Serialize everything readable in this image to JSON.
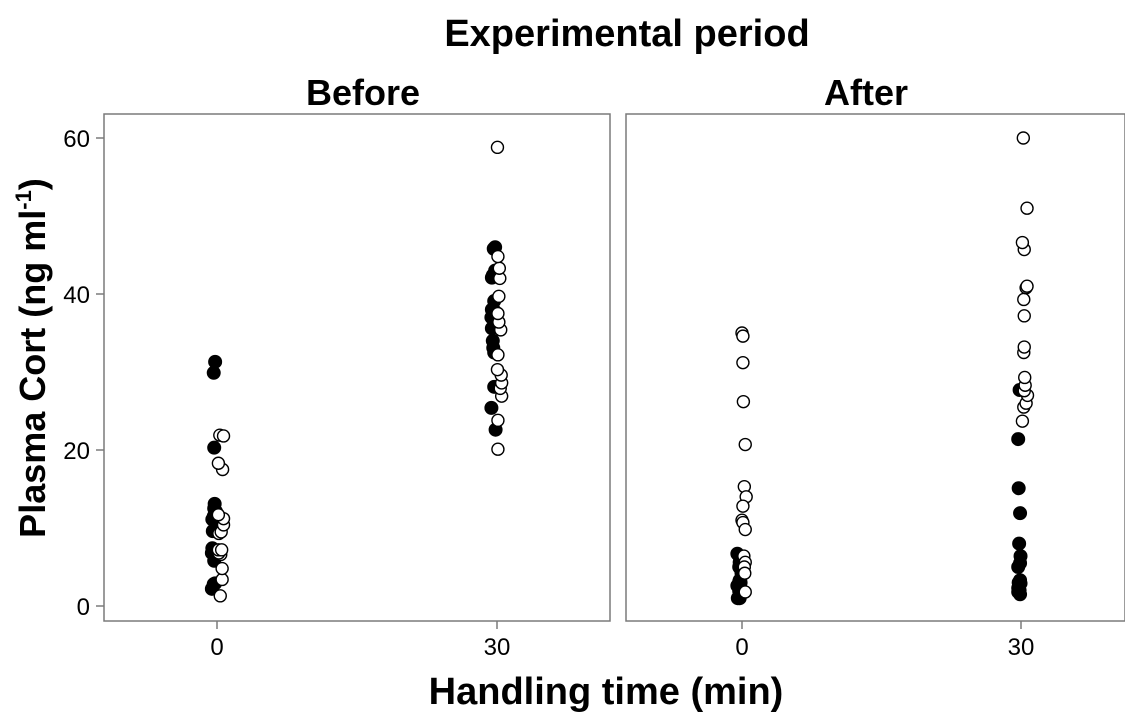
{
  "chart_data": {
    "type": "scatter",
    "title": "Experimental period",
    "xlabel": "Handling time (min)",
    "ylabel": "Plasma Cort (ng ml",
    "ylabel_sup": "-1",
    "ylabel_close": ")",
    "ylim": [
      -2,
      63
    ],
    "yticks": [
      "0",
      "20",
      "40",
      "60"
    ],
    "xticks": [
      "0",
      "30"
    ],
    "grid": false,
    "legend": "none",
    "panels": [
      {
        "name": "Before",
        "series": [
          {
            "marker": "filled",
            "points": [
              [
                -0.55,
                2.2
              ],
              [
                -0.35,
                2.8
              ],
              [
                -0.2,
                2.9
              ],
              [
                -0.5,
                7.4
              ],
              [
                -0.55,
                6.8
              ],
              [
                -0.3,
                5.8
              ],
              [
                -0.45,
                9.6
              ],
              [
                -0.1,
                10.0
              ],
              [
                -0.5,
                11.1
              ],
              [
                -0.35,
                11.5
              ],
              [
                -0.25,
                11.7
              ],
              [
                -0.1,
                12.1
              ],
              [
                -0.3,
                12.5
              ],
              [
                -0.25,
                13.1
              ],
              [
                -0.3,
                20.3
              ],
              [
                -0.35,
                29.9
              ],
              [
                -0.2,
                31.3
              ],
              [
                29.4,
                25.4
              ],
              [
                29.85,
                22.6
              ],
              [
                29.7,
                28.1
              ],
              [
                29.7,
                32.5
              ],
              [
                29.6,
                33.1
              ],
              [
                29.55,
                34.0
              ],
              [
                29.45,
                35.6
              ],
              [
                29.4,
                37.0
              ],
              [
                29.75,
                37.8
              ],
              [
                29.45,
                38.0
              ],
              [
                29.7,
                39.1
              ],
              [
                29.45,
                42.1
              ],
              [
                29.55,
                42.4
              ],
              [
                29.8,
                43.0
              ],
              [
                29.65,
                45.8
              ],
              [
                29.8,
                46.0
              ]
            ]
          },
          {
            "marker": "open",
            "points": [
              [
                0.35,
                1.3
              ],
              [
                0.55,
                3.4
              ],
              [
                0.55,
                4.8
              ],
              [
                0.4,
                6.6
              ],
              [
                0.2,
                6.8
              ],
              [
                0.15,
                7.2
              ],
              [
                0.5,
                7.2
              ],
              [
                0.2,
                9.3
              ],
              [
                0.45,
                9.5
              ],
              [
                0.7,
                10.4
              ],
              [
                0.7,
                11.2
              ],
              [
                0.15,
                11.7
              ],
              [
                0.6,
                17.5
              ],
              [
                0.15,
                18.3
              ],
              [
                0.3,
                21.9
              ],
              [
                0.7,
                21.8
              ],
              [
                30.1,
                20.1
              ],
              [
                30.1,
                23.8
              ],
              [
                30.5,
                26.9
              ],
              [
                30.35,
                27.9
              ],
              [
                30.5,
                28.6
              ],
              [
                30.45,
                29.6
              ],
              [
                30.05,
                30.3
              ],
              [
                30.1,
                32.2
              ],
              [
                30.4,
                35.4
              ],
              [
                30.2,
                36.4
              ],
              [
                30.1,
                37.5
              ],
              [
                30.2,
                39.7
              ],
              [
                30.2,
                42.1
              ],
              [
                30.3,
                42.0
              ],
              [
                30.25,
                43.3
              ],
              [
                30.1,
                44.8
              ],
              [
                30.05,
                58.8
              ]
            ]
          }
        ]
      },
      {
        "name": "After",
        "series": [
          {
            "marker": "filled",
            "points": [
              [
                -0.45,
                1.0
              ],
              [
                -0.25,
                1.0
              ],
              [
                -0.3,
                1.9
              ],
              [
                -0.5,
                2.6
              ],
              [
                -0.35,
                2.5
              ],
              [
                -0.15,
                3.0
              ],
              [
                -0.3,
                3.1
              ],
              [
                -0.25,
                3.3
              ],
              [
                -0.05,
                4.2
              ],
              [
                -0.1,
                4.6
              ],
              [
                -0.3,
                5.0
              ],
              [
                -0.25,
                5.6
              ],
              [
                -0.5,
                6.7
              ],
              [
                -0.25,
                6.3
              ],
              [
                29.7,
                1.8
              ],
              [
                29.9,
                1.5
              ],
              [
                29.85,
                2.0
              ],
              [
                29.7,
                2.3
              ],
              [
                29.8,
                2.7
              ],
              [
                29.95,
                2.9
              ],
              [
                29.75,
                3.0
              ],
              [
                29.9,
                3.3
              ],
              [
                29.7,
                5.0
              ],
              [
                29.9,
                5.5
              ],
              [
                29.95,
                6.4
              ],
              [
                29.8,
                8.0
              ],
              [
                29.9,
                11.9
              ],
              [
                29.75,
                15.1
              ],
              [
                29.7,
                21.4
              ],
              [
                29.85,
                27.7
              ]
            ]
          },
          {
            "marker": "open",
            "points": [
              [
                0.0,
                35.0
              ],
              [
                0.1,
                34.6
              ],
              [
                0.1,
                31.2
              ],
              [
                0.15,
                26.2
              ],
              [
                0.35,
                20.7
              ],
              [
                0.25,
                15.3
              ],
              [
                0.45,
                14.0
              ],
              [
                0.1,
                12.8
              ],
              [
                0.0,
                11.0
              ],
              [
                0.1,
                10.7
              ],
              [
                0.35,
                9.8
              ],
              [
                0.2,
                6.4
              ],
              [
                0.35,
                5.6
              ],
              [
                0.25,
                5.0
              ],
              [
                0.3,
                4.2
              ],
              [
                0.35,
                1.8
              ],
              [
                30.15,
                23.7
              ],
              [
                30.3,
                25.5
              ],
              [
                30.55,
                26.0
              ],
              [
                30.7,
                27.0
              ],
              [
                30.35,
                27.6
              ],
              [
                30.45,
                28.3
              ],
              [
                30.4,
                29.3
              ],
              [
                30.3,
                32.5
              ],
              [
                30.35,
                33.2
              ],
              [
                30.35,
                37.2
              ],
              [
                30.3,
                39.3
              ],
              [
                30.55,
                40.8
              ],
              [
                30.65,
                41.0
              ],
              [
                30.35,
                45.7
              ],
              [
                30.15,
                46.6
              ],
              [
                30.65,
                51.0
              ],
              [
                30.25,
                60.0
              ]
            ]
          }
        ]
      }
    ]
  }
}
